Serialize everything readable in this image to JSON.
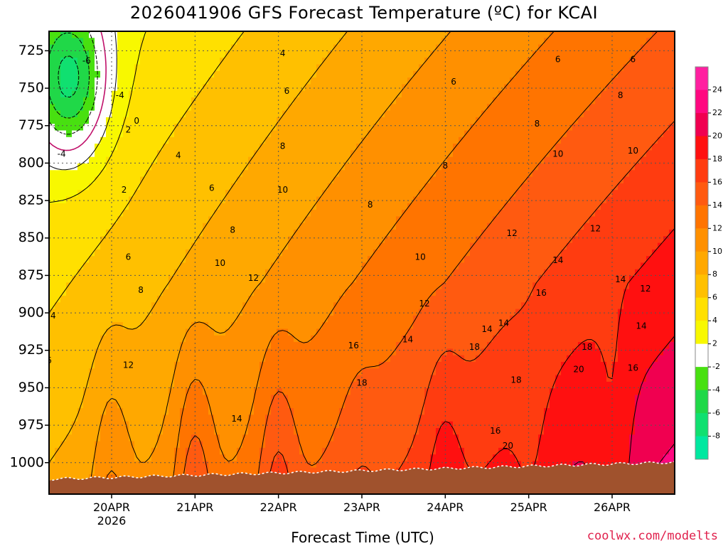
{
  "chart_data": {
    "type": "contour",
    "title": "2026041906 GFS Forecast Temperature (ºC) for KCAI",
    "xlabel": "Forecast Time (UTC)",
    "ylabel": "Pressure (hPa)",
    "credit": "coolwx.com/modelts",
    "x_ticks": [
      {
        "label": "20APR",
        "sub": "2026",
        "day": 20
      },
      {
        "label": "21APR",
        "sub": "",
        "day": 21
      },
      {
        "label": "22APR",
        "sub": "",
        "day": 22
      },
      {
        "label": "23APR",
        "sub": "",
        "day": 23
      },
      {
        "label": "24APR",
        "sub": "",
        "day": 24
      },
      {
        "label": "25APR",
        "sub": "",
        "day": 25
      },
      {
        "label": "26APR",
        "sub": "",
        "day": 26
      }
    ],
    "xlim": [
      19.25,
      26.75
    ],
    "y_ticks": [
      725,
      750,
      775,
      800,
      825,
      850,
      875,
      900,
      925,
      950,
      975,
      1000
    ],
    "ylim": [
      712,
      1021
    ],
    "colorbar": {
      "labels": [
        "-8",
        "-6",
        "-4",
        "-2",
        "2",
        "4",
        "6",
        "8",
        "10",
        "12",
        "14",
        "16",
        "18",
        "20",
        "22",
        "24"
      ],
      "bins": [
        {
          "min": -10,
          "max": -8,
          "color": "#00e8a0"
        },
        {
          "min": -8,
          "max": -6,
          "color": "#10e070"
        },
        {
          "min": -6,
          "max": -4,
          "color": "#20d848"
        },
        {
          "min": -4,
          "max": -2,
          "color": "#48e010"
        },
        {
          "min": -2,
          "max": 2,
          "color": "#ffffff"
        },
        {
          "min": 2,
          "max": 4,
          "color": "#f8f800"
        },
        {
          "min": 4,
          "max": 6,
          "color": "#ffe000"
        },
        {
          "min": 6,
          "max": 8,
          "color": "#ffc000"
        },
        {
          "min": 8,
          "max": 10,
          "color": "#ffa800"
        },
        {
          "min": 10,
          "max": 12,
          "color": "#ff9000"
        },
        {
          "min": 12,
          "max": 14,
          "color": "#ff7400"
        },
        {
          "min": 14,
          "max": 16,
          "color": "#ff5a10"
        },
        {
          "min": 16,
          "max": 18,
          "color": "#ff3c10"
        },
        {
          "min": 18,
          "max": 20,
          "color": "#ff1010"
        },
        {
          "min": 20,
          "max": 22,
          "color": "#f00050"
        },
        {
          "min": 22,
          "max": 24,
          "color": "#ff0880"
        },
        {
          "min": 24,
          "max": 26,
          "color": "#ff20a0"
        }
      ]
    },
    "surface_pressure_hpa": 1008,
    "thermal_pulses": [
      {
        "day": 20.0,
        "peak_c": 18
      },
      {
        "day": 21.0,
        "peak_c": 21
      },
      {
        "day": 22.0,
        "peak_c": 22
      },
      {
        "day": 23.0,
        "peak_c": 21
      },
      {
        "day": 24.0,
        "peak_c": 24
      },
      {
        "day": 25.0,
        "peak_c": 22
      },
      {
        "day": 26.0,
        "peak_c": 22
      }
    ],
    "contour_labels": [
      {
        "text": "-6",
        "day": 19.7,
        "p": 732
      },
      {
        "text": "-4",
        "day": 20.1,
        "p": 755
      },
      {
        "text": "-4",
        "day": 19.4,
        "p": 794
      },
      {
        "text": "2",
        "day": 20.2,
        "p": 778
      },
      {
        "text": "0",
        "day": 20.3,
        "p": 772
      },
      {
        "text": "2",
        "day": 20.15,
        "p": 818
      },
      {
        "text": "4",
        "day": 19.3,
        "p": 902
      },
      {
        "text": "6",
        "day": 19.25,
        "p": 932
      },
      {
        "text": "6",
        "day": 20.2,
        "p": 863
      },
      {
        "text": "8",
        "day": 20.35,
        "p": 885
      },
      {
        "text": "12",
        "day": 20.2,
        "p": 935
      },
      {
        "text": "4",
        "day": 20.8,
        "p": 795
      },
      {
        "text": "6",
        "day": 21.2,
        "p": 817
      },
      {
        "text": "8",
        "day": 21.45,
        "p": 845
      },
      {
        "text": "10",
        "day": 21.3,
        "p": 867
      },
      {
        "text": "12",
        "day": 21.7,
        "p": 877
      },
      {
        "text": "4",
        "day": 22.05,
        "p": 727
      },
      {
        "text": "6",
        "day": 22.1,
        "p": 752
      },
      {
        "text": "8",
        "day": 22.05,
        "p": 789
      },
      {
        "text": "10",
        "day": 22.05,
        "p": 818
      },
      {
        "text": "14",
        "day": 21.5,
        "p": 971
      },
      {
        "text": "8",
        "day": 23.1,
        "p": 828
      },
      {
        "text": "16",
        "day": 22.9,
        "p": 922
      },
      {
        "text": "18",
        "day": 23.0,
        "p": 947
      },
      {
        "text": "10",
        "day": 23.7,
        "p": 863
      },
      {
        "text": "12",
        "day": 23.75,
        "p": 894
      },
      {
        "text": "14",
        "day": 23.55,
        "p": 918
      },
      {
        "text": "8",
        "day": 24.0,
        "p": 802
      },
      {
        "text": "6",
        "day": 24.1,
        "p": 746
      },
      {
        "text": "14",
        "day": 24.5,
        "p": 911
      },
      {
        "text": "18",
        "day": 24.35,
        "p": 923
      },
      {
        "text": "16",
        "day": 24.6,
        "p": 979
      },
      {
        "text": "14",
        "day": 24.7,
        "p": 907
      },
      {
        "text": "12",
        "day": 24.8,
        "p": 847
      },
      {
        "text": "8",
        "day": 25.1,
        "p": 774
      },
      {
        "text": "10",
        "day": 25.35,
        "p": 794
      },
      {
        "text": "6",
        "day": 25.35,
        "p": 731
      },
      {
        "text": "14",
        "day": 25.35,
        "p": 865
      },
      {
        "text": "16",
        "day": 25.15,
        "p": 887
      },
      {
        "text": "18",
        "day": 24.85,
        "p": 945
      },
      {
        "text": "20",
        "day": 24.75,
        "p": 989
      },
      {
        "text": "12",
        "day": 25.8,
        "p": 844
      },
      {
        "text": "8",
        "day": 26.1,
        "p": 755
      },
      {
        "text": "6",
        "day": 26.25,
        "p": 731
      },
      {
        "text": "10",
        "day": 26.25,
        "p": 792
      },
      {
        "text": "14",
        "day": 26.1,
        "p": 878
      },
      {
        "text": "12",
        "day": 26.4,
        "p": 884
      },
      {
        "text": "14",
        "day": 26.35,
        "p": 909
      },
      {
        "text": "16",
        "day": 26.25,
        "p": 937
      },
      {
        "text": "18",
        "day": 25.7,
        "p": 923
      },
      {
        "text": "20",
        "day": 25.6,
        "p": 938
      }
    ]
  }
}
